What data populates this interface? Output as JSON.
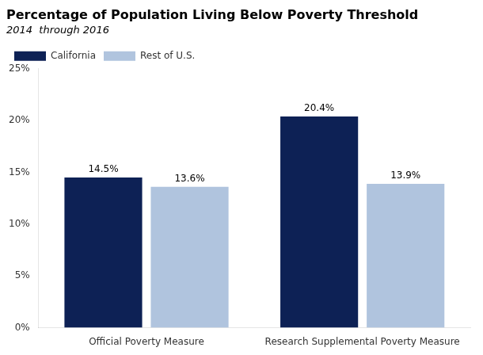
{
  "chart_data": {
    "type": "bar",
    "title": "Percentage of Population Living Below Poverty Threshold",
    "subtitle": "2014  through 2016",
    "categories": [
      "Official Poverty Measure",
      "Research Supplemental Poverty Measure"
    ],
    "series": [
      {
        "name": "California",
        "color": "#0d2155",
        "values": [
          14.5,
          20.4
        ],
        "value_labels": [
          "14.5%",
          "20.4%"
        ]
      },
      {
        "name": "Rest of U.S.",
        "color": "#b0c4de",
        "values": [
          13.6,
          13.9
        ],
        "value_labels": [
          "13.6%",
          "13.9%"
        ]
      }
    ],
    "ylim": [
      0,
      25
    ],
    "yticks": [
      {
        "value": 0,
        "label": "0%"
      },
      {
        "value": 5,
        "label": "5%"
      },
      {
        "value": 10,
        "label": "10%"
      },
      {
        "value": 15,
        "label": "15%"
      },
      {
        "value": 20,
        "label": "20%"
      },
      {
        "value": 25,
        "label": "25%"
      }
    ],
    "grid": false,
    "legend": "upper left",
    "data_labels": true
  }
}
